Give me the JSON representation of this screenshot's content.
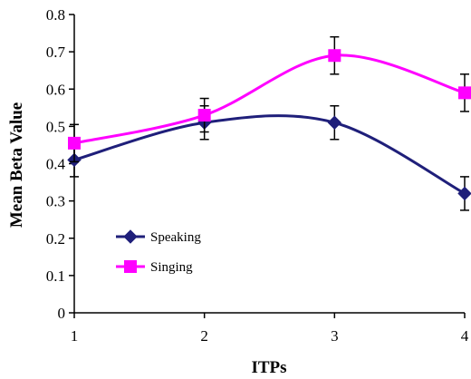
{
  "chart_data": {
    "type": "line",
    "title": "",
    "xlabel": "ITPs",
    "ylabel": "Mean Beta Value",
    "categories": [
      "1",
      "2",
      "3",
      "4"
    ],
    "x": [
      1,
      2,
      3,
      4
    ],
    "xlim": [
      1,
      4
    ],
    "ylim": [
      0,
      0.8
    ],
    "yticks": [
      "0",
      "0.1",
      "0.2",
      "0.3",
      "0.4",
      "0.5",
      "0.6",
      "0.7",
      "0.8"
    ],
    "grid": false,
    "smoothed": true,
    "legend_position": "lower-left",
    "series": [
      {
        "name": "Speaking",
        "color": "#1f1f7a",
        "marker": "diamond",
        "values": [
          0.41,
          0.51,
          0.51,
          0.32
        ],
        "errors": [
          0.045,
          0.045,
          0.045,
          0.045
        ]
      },
      {
        "name": "Singing",
        "color": "#ff00ff",
        "marker": "square",
        "values": [
          0.455,
          0.53,
          0.69,
          0.59
        ],
        "errors": [
          0.05,
          0.045,
          0.05,
          0.05
        ]
      }
    ]
  }
}
